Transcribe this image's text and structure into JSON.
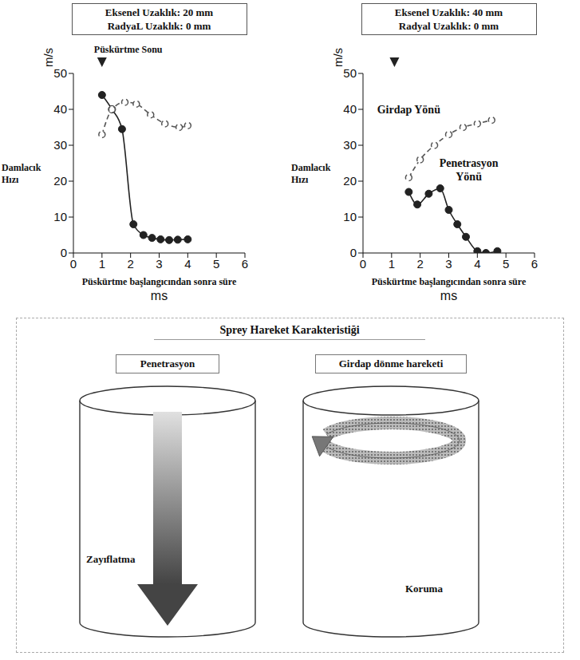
{
  "chart_data": [
    {
      "type": "line",
      "title": "Eksenel Uzaklık: 20 mm",
      "subtitle": "RadyaL Uzaklık: 0 mm",
      "xlabel": "Püskürtme başlangıcından sonra süre",
      "x_unit": "ms",
      "ylabel": "Damlacık Hızı",
      "y_unit": "m/s",
      "xlim": [
        0,
        6
      ],
      "xticks": [
        0,
        1,
        2,
        3,
        4,
        5,
        6
      ],
      "ylim": [
        0,
        50
      ],
      "yticks": [
        0,
        10,
        20,
        30,
        40,
        50
      ],
      "annotations": [
        {
          "x": 1,
          "text": "Püskürtme Sonu"
        }
      ],
      "series": [
        {
          "color": "#222222",
          "marker": "filled_circle",
          "line_style": "solid",
          "x": [
            1.0,
            1.35,
            1.7,
            2.1,
            2.45,
            2.75,
            3.05,
            3.35,
            3.65,
            4.0
          ],
          "values": [
            44,
            40,
            34.5,
            8,
            5,
            4.2,
            3.8,
            3.6,
            3.7,
            3.8
          ]
        },
        {
          "color": "#555555",
          "marker": "open_circle",
          "line_style": "dashed",
          "x": [
            1.0,
            1.35,
            1.8,
            2.2,
            2.7,
            3.2,
            3.7,
            4.0
          ],
          "values": [
            33,
            40,
            42,
            41.5,
            38.5,
            36,
            35,
            35.5
          ]
        }
      ]
    },
    {
      "type": "line",
      "title": "Eksenel Uzaklık: 40 mm",
      "subtitle": "Radyal Uzaklık: 0 mm",
      "xlabel": "Püskürtme başlangıcından sonra süre",
      "x_unit": "ms",
      "ylabel": "Damlacık Hızı",
      "y_unit": "m/s",
      "xlim": [
        0,
        6
      ],
      "xticks": [
        0,
        1,
        2,
        3,
        4,
        5,
        6
      ],
      "ylim": [
        0,
        50
      ],
      "yticks": [
        0,
        10,
        20,
        30,
        40,
        50
      ],
      "annotations": [
        {
          "x": 1.1
        }
      ],
      "series": [
        {
          "name": "Girdap Yönü",
          "color": "#555555",
          "marker": "open_circle",
          "line_style": "dashed",
          "x": [
            1.6,
            2.0,
            2.5,
            3.0,
            3.5,
            4.0,
            4.5
          ],
          "values": [
            21,
            26,
            30,
            33,
            35,
            36,
            37
          ]
        },
        {
          "name": "Penetrasyon Yönü",
          "color": "#222222",
          "marker": "filled_circle",
          "line_style": "solid",
          "x": [
            1.6,
            1.9,
            2.3,
            2.7,
            3.0,
            3.3,
            3.6,
            4.0,
            4.3,
            4.7
          ],
          "values": [
            17,
            13.5,
            16.5,
            18,
            12,
            8,
            4.5,
            0.5,
            0,
            0.5
          ]
        }
      ]
    }
  ],
  "diagram": {
    "title": "Sprey Hareket Karakteristiği",
    "panels": [
      {
        "title": "Penetrasyon",
        "label": "Zayıflatma"
      },
      {
        "title": "Girdap dönme hareketi",
        "label": "Koruma"
      }
    ]
  }
}
